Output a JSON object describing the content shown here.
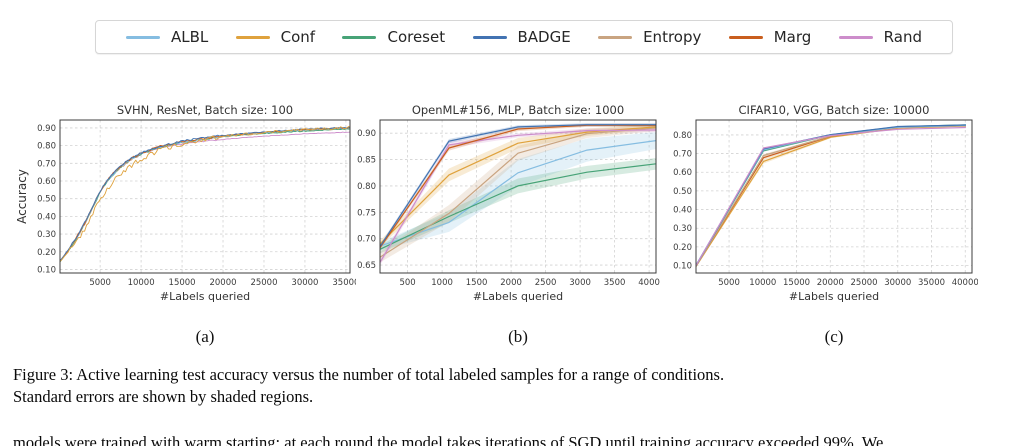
{
  "legend": {
    "items": [
      {
        "key": "albl",
        "label": "ALBL"
      },
      {
        "key": "conf",
        "label": "Conf"
      },
      {
        "key": "coreset",
        "label": "Coreset"
      },
      {
        "key": "badge",
        "label": "BADGE"
      },
      {
        "key": "entropy",
        "label": "Entropy"
      },
      {
        "key": "marg",
        "label": "Marg"
      },
      {
        "key": "rand",
        "label": "Rand"
      }
    ]
  },
  "palette": {
    "albl": "#85bde1",
    "conf": "#dfa23d",
    "coreset": "#47a377",
    "badge": "#4273b2",
    "entropy": "#c9a481",
    "marg": "#c95e1e",
    "rand": "#cd8dcb"
  },
  "figure_labels": {
    "a": "(a)",
    "b": "(b)",
    "c": "(c)"
  },
  "caption": {
    "line1": "Figure 3: Active learning test accuracy versus the number of total labeled samples for a range of conditions.",
    "line2": "Standard errors are shown by shaded regions.",
    "continuation": "models were trained with warm starting; at each round the model takes iterations of SGD until training accuracy exceeded 99%. We"
  },
  "chart_data": [
    {
      "id": "a",
      "type": "line",
      "title": "SVHN, ResNet, Batch size: 100",
      "xlabel": "#Labels queried",
      "ylabel": "Accuracy",
      "xlim": [
        100,
        35500
      ],
      "ylim": [
        0.08,
        0.945
      ],
      "xticks": [
        5000,
        10000,
        15000,
        20000,
        25000,
        30000,
        35000
      ],
      "yticks": [
        0.1,
        0.2,
        0.3,
        0.4,
        0.5,
        0.6,
        0.7,
        0.8,
        0.9
      ],
      "grid": true,
      "legend_position": "outside-top",
      "noise_step": 250,
      "series": [
        {
          "name": "Rand",
          "key": "rand",
          "noise": 0.003,
          "x": [
            100,
            500,
            1000,
            1500,
            2000,
            3000,
            4000,
            5000,
            6000,
            7000,
            8000,
            9000,
            10000,
            12000,
            14000,
            16000,
            18000,
            20000,
            22500,
            25000,
            27500,
            30000,
            32500,
            35500
          ],
          "y": [
            0.145,
            0.17,
            0.2,
            0.235,
            0.27,
            0.35,
            0.445,
            0.54,
            0.61,
            0.66,
            0.7,
            0.73,
            0.753,
            0.784,
            0.802,
            0.815,
            0.826,
            0.835,
            0.845,
            0.853,
            0.86,
            0.867,
            0.871,
            0.877
          ]
        },
        {
          "name": "Entropy",
          "key": "entropy",
          "noise": 0.007,
          "x": [
            100,
            500,
            1000,
            1500,
            2000,
            3000,
            4000,
            5000,
            6000,
            7000,
            8000,
            9000,
            10000,
            12000,
            14000,
            16000,
            18000,
            20000,
            22500,
            25000,
            27500,
            30000,
            32500,
            35500
          ],
          "y": [
            0.141,
            0.166,
            0.196,
            0.231,
            0.266,
            0.346,
            0.441,
            0.536,
            0.606,
            0.656,
            0.696,
            0.726,
            0.751,
            0.786,
            0.808,
            0.824,
            0.838,
            0.85,
            0.861,
            0.87,
            0.878,
            0.885,
            0.89,
            0.896
          ]
        },
        {
          "name": "Coreset",
          "key": "coreset",
          "noise": 0.006,
          "x": [
            100,
            500,
            1000,
            1500,
            2000,
            3000,
            4000,
            5000,
            6000,
            7000,
            8000,
            9000,
            10000,
            12000,
            14000,
            16000,
            18000,
            20000,
            22500,
            25000,
            27500,
            30000,
            32500,
            35500
          ],
          "y": [
            0.143,
            0.168,
            0.198,
            0.233,
            0.268,
            0.348,
            0.443,
            0.538,
            0.608,
            0.658,
            0.698,
            0.728,
            0.753,
            0.788,
            0.81,
            0.826,
            0.84,
            0.851,
            0.861,
            0.869,
            0.876,
            0.883,
            0.889,
            0.895
          ]
        },
        {
          "name": "ALBL",
          "key": "albl",
          "noise": 0.006,
          "x": [
            100,
            500,
            1000,
            1500,
            2000,
            3000,
            4000,
            5000,
            6000,
            7000,
            8000,
            9000,
            10000,
            12000,
            14000,
            16000,
            18000,
            20000,
            22500,
            25000,
            27500,
            30000,
            32500,
            35500
          ],
          "y": [
            0.145,
            0.17,
            0.2,
            0.235,
            0.27,
            0.35,
            0.445,
            0.54,
            0.61,
            0.66,
            0.7,
            0.73,
            0.755,
            0.79,
            0.812,
            0.828,
            0.842,
            0.854,
            0.865,
            0.874,
            0.882,
            0.889,
            0.894,
            0.9
          ]
        },
        {
          "name": "Marg",
          "key": "marg",
          "noise": 0.006,
          "x": [
            100,
            500,
            1000,
            1500,
            2000,
            3000,
            4000,
            5000,
            6000,
            7000,
            8000,
            9000,
            10000,
            12000,
            14000,
            16000,
            18000,
            20000,
            22500,
            25000,
            27500,
            30000,
            32500,
            35500
          ],
          "y": [
            0.147,
            0.172,
            0.202,
            0.237,
            0.272,
            0.352,
            0.447,
            0.542,
            0.612,
            0.662,
            0.702,
            0.732,
            0.757,
            0.792,
            0.814,
            0.83,
            0.844,
            0.856,
            0.867,
            0.876,
            0.884,
            0.891,
            0.896,
            0.902
          ]
        },
        {
          "name": "BADGE",
          "key": "badge",
          "noise": 0.006,
          "x": [
            100,
            500,
            1000,
            1500,
            2000,
            3000,
            4000,
            5000,
            6000,
            7000,
            8000,
            9000,
            10000,
            12000,
            14000,
            16000,
            18000,
            20000,
            22500,
            25000,
            27500,
            30000,
            32500,
            35500
          ],
          "y": [
            0.149,
            0.174,
            0.204,
            0.239,
            0.274,
            0.354,
            0.449,
            0.544,
            0.614,
            0.664,
            0.704,
            0.734,
            0.759,
            0.794,
            0.816,
            0.832,
            0.846,
            0.858,
            0.869,
            0.878,
            0.886,
            0.893,
            0.898,
            0.904
          ]
        },
        {
          "name": "Conf",
          "key": "conf",
          "noise": 0.014,
          "x": [
            100,
            500,
            1000,
            1500,
            2000,
            3000,
            4000,
            5000,
            6000,
            7000,
            8000,
            9000,
            10000,
            12000,
            14000,
            16000,
            18000,
            20000,
            22500,
            25000,
            27500,
            30000,
            32500,
            35500
          ],
          "y": [
            0.145,
            0.165,
            0.19,
            0.22,
            0.25,
            0.32,
            0.405,
            0.495,
            0.565,
            0.618,
            0.66,
            0.695,
            0.725,
            0.77,
            0.8,
            0.82,
            0.837,
            0.852,
            0.865,
            0.875,
            0.884,
            0.892,
            0.897,
            0.903
          ]
        }
      ]
    },
    {
      "id": "b",
      "type": "line",
      "title": "OpenML#156, MLP, Batch size: 1000",
      "xlabel": "#Labels queried",
      "ylabel": "",
      "xlim": [
        100,
        4100
      ],
      "ylim": [
        0.635,
        0.925
      ],
      "xticks": [
        500,
        1000,
        1500,
        2000,
        2500,
        3000,
        3500,
        4000
      ],
      "yticks": [
        0.65,
        0.7,
        0.75,
        0.8,
        0.85,
        0.9
      ],
      "grid": true,
      "series": [
        {
          "name": "ALBL",
          "key": "albl",
          "x": [
            100,
            1100,
            2100,
            3100,
            4100
          ],
          "y": [
            0.686,
            0.731,
            0.825,
            0.868,
            0.886
          ],
          "band": [
            0.008,
            0.018,
            0.026,
            0.022,
            0.016
          ]
        },
        {
          "name": "Coreset",
          "key": "coreset",
          "x": [
            100,
            1100,
            2100,
            3100,
            4100
          ],
          "y": [
            0.68,
            0.742,
            0.8,
            0.826,
            0.842
          ],
          "band": [
            0.008,
            0.012,
            0.014,
            0.012,
            0.011
          ]
        },
        {
          "name": "Entropy",
          "key": "entropy",
          "x": [
            100,
            1100,
            2100,
            3100,
            4100
          ],
          "y": [
            0.665,
            0.748,
            0.862,
            0.899,
            0.91
          ],
          "band": [
            0.01,
            0.016,
            0.014,
            0.008,
            0.006
          ]
        },
        {
          "name": "Conf",
          "key": "conf",
          "x": [
            100,
            1100,
            2100,
            3100,
            4100
          ],
          "y": [
            0.69,
            0.821,
            0.881,
            0.902,
            0.912
          ],
          "band": [
            0.006,
            0.012,
            0.01,
            0.007,
            0.005
          ]
        },
        {
          "name": "Rand",
          "key": "rand",
          "x": [
            100,
            1100,
            2100,
            3100,
            4100
          ],
          "y": [
            0.655,
            0.878,
            0.896,
            0.905,
            0.906
          ],
          "band": [
            0.006,
            0.006,
            0.004,
            0.004,
            0.004
          ]
        },
        {
          "name": "Marg",
          "key": "marg",
          "x": [
            100,
            1100,
            2100,
            3100,
            4100
          ],
          "y": [
            0.683,
            0.872,
            0.908,
            0.915,
            0.915
          ],
          "band": [
            0.004,
            0.005,
            0.004,
            0.003,
            0.003
          ]
        },
        {
          "name": "BADGE",
          "key": "badge",
          "x": [
            100,
            1100,
            2100,
            3100,
            4100
          ],
          "y": [
            0.685,
            0.885,
            0.912,
            0.916,
            0.916
          ],
          "band": [
            0.004,
            0.004,
            0.003,
            0.003,
            0.003
          ]
        }
      ]
    },
    {
      "id": "c",
      "type": "line",
      "title": "CIFAR10, VGG, Batch size: 10000",
      "xlabel": "#Labels queried",
      "ylabel": "",
      "xlim": [
        100,
        41000
      ],
      "ylim": [
        0.06,
        0.88
      ],
      "xticks": [
        5000,
        10000,
        15000,
        20000,
        25000,
        30000,
        35000,
        40000
      ],
      "yticks": [
        0.1,
        0.2,
        0.3,
        0.4,
        0.5,
        0.6,
        0.7,
        0.8
      ],
      "grid": true,
      "series": [
        {
          "name": "Conf",
          "key": "conf",
          "x": [
            100,
            10100,
            20100,
            30100,
            40100
          ],
          "y": [
            0.095,
            0.658,
            0.788,
            0.836,
            0.848
          ],
          "band": [
            0.004,
            0.012,
            0.005,
            0.003,
            0.003
          ]
        },
        {
          "name": "Marg",
          "key": "marg",
          "x": [
            100,
            10100,
            20100,
            30100,
            40100
          ],
          "y": [
            0.098,
            0.678,
            0.793,
            0.84,
            0.85
          ],
          "band": [
            0.004,
            0.008,
            0.004,
            0.003,
            0.003
          ]
        },
        {
          "name": "Entropy",
          "key": "entropy",
          "x": [
            100,
            10100,
            20100,
            30100,
            40100
          ],
          "y": [
            0.096,
            0.69,
            0.795,
            0.84,
            0.85
          ],
          "band": [
            0.004,
            0.008,
            0.004,
            0.003,
            0.003
          ]
        },
        {
          "name": "Coreset",
          "key": "coreset",
          "x": [
            100,
            10100,
            20100,
            30100,
            40100
          ],
          "y": [
            0.1,
            0.715,
            0.8,
            0.844,
            0.854
          ],
          "band": [
            0.003,
            0.005,
            0.003,
            0.002,
            0.002
          ]
        },
        {
          "name": "ALBL",
          "key": "albl",
          "x": [
            100,
            10100,
            20100,
            30100,
            40100
          ],
          "y": [
            0.103,
            0.72,
            0.801,
            0.841,
            0.851
          ],
          "band": [
            0.004,
            0.01,
            0.004,
            0.003,
            0.003
          ]
        },
        {
          "name": "BADGE",
          "key": "badge",
          "x": [
            100,
            10100,
            20100,
            30100,
            40100
          ],
          "y": [
            0.1,
            0.725,
            0.802,
            0.845,
            0.853
          ],
          "band": [
            0.003,
            0.005,
            0.003,
            0.002,
            0.002
          ]
        },
        {
          "name": "Rand",
          "key": "rand",
          "x": [
            100,
            10100,
            20100,
            30100,
            40100
          ],
          "y": [
            0.1,
            0.73,
            0.797,
            0.83,
            0.84
          ],
          "band": [
            0.003,
            0.004,
            0.003,
            0.002,
            0.002
          ]
        }
      ]
    }
  ]
}
